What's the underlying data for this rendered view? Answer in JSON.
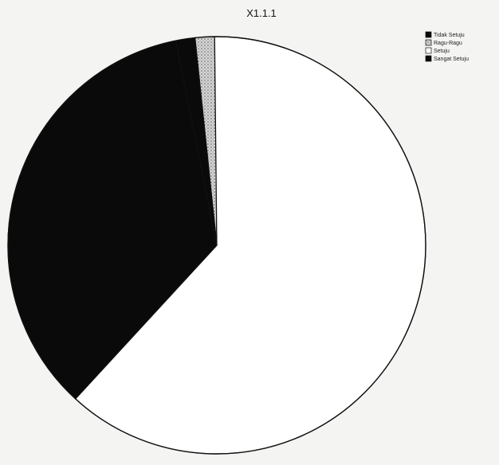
{
  "chart_data": {
    "type": "pie",
    "title": "X1.1.1",
    "categories": [
      "Tidak Setuju",
      "Ragu-Ragu",
      "Setuju",
      "Sangat Setuju"
    ],
    "values": [
      1.5,
      1.5,
      62,
      35
    ],
    "colors": [
      "#0a0a0a",
      "#bdbdbd",
      "#ffffff",
      "#0a0a0a"
    ],
    "legend_position": "top-right"
  }
}
